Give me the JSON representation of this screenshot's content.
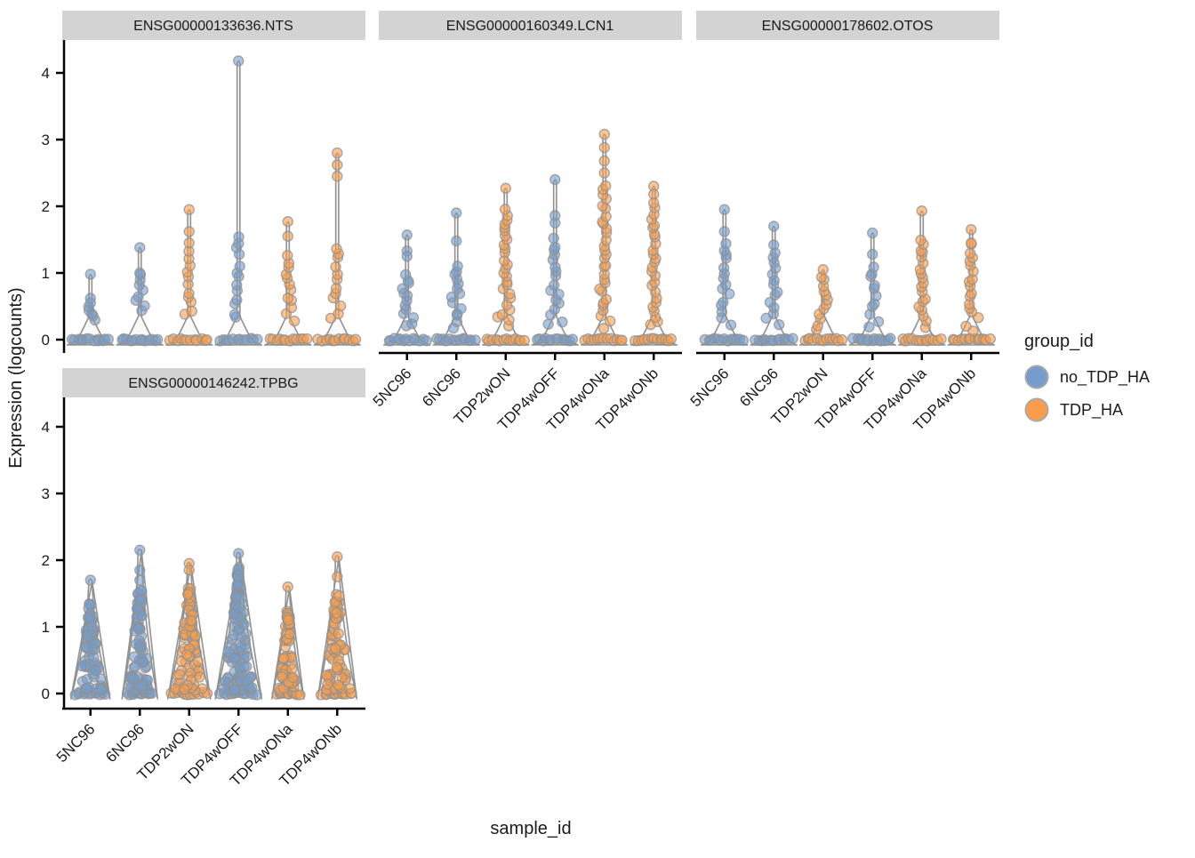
{
  "axes": {
    "x_title": "sample_id",
    "y_title": "Expression (logcounts)",
    "y_ticks": [
      "0",
      "1",
      "2",
      "3",
      "4"
    ],
    "x_categories": [
      "5NC96",
      "6NC96",
      "TDP2wON",
      "TDP4wOFF",
      "TDP4wONa",
      "TDP4wONb"
    ]
  },
  "legend": {
    "title": "group_id",
    "items": [
      {
        "label": "no_TDP_HA",
        "color": "#759CCC"
      },
      {
        "label": "TDP_HA",
        "color": "#F99C4B"
      }
    ]
  },
  "colors": {
    "strip_bg": "#D3D3D3",
    "violin_outline": "#8C8C8C",
    "violin_fill": "#F4F4F4",
    "point_stroke": "#909090",
    "axis_line": "#000000"
  },
  "chart_data": {
    "type": "violin-beeswarm",
    "xlabel": "sample_id",
    "ylabel": "Expression (logcounts)",
    "ylim": [
      0,
      4.4
    ],
    "y_tick_values": [
      0,
      1,
      2,
      3,
      4
    ],
    "x_categories": [
      "5NC96",
      "6NC96",
      "TDP2wON",
      "TDP4wOFF",
      "TDP4wONa",
      "TDP4wONb"
    ],
    "group_of_sample": {
      "5NC96": "no_TDP_HA",
      "6NC96": "no_TDP_HA",
      "TDP2wON": "TDP_HA",
      "TDP4wOFF": "no_TDP_HA",
      "TDP4wONa": "TDP_HA",
      "TDP4wONb": "TDP_HA"
    },
    "facets": [
      {
        "title": "ENSG00000133636.NTS",
        "violins": [
          {
            "sample": "5NC96",
            "group": "no_TDP_HA",
            "max": 0.98,
            "upper": [
              0.98,
              0.62,
              0.55
            ],
            "column": {
              "from": 0.3,
              "to": 0.5,
              "n": 5
            },
            "base_n": 13,
            "shape": "spike",
            "hw": 26
          },
          {
            "sample": "6NC96",
            "group": "no_TDP_HA",
            "max": 1.38,
            "upper": [
              1.38,
              1.0
            ],
            "column": {
              "from": 0.45,
              "to": 0.95,
              "n": 8
            },
            "base_n": 13,
            "shape": "spike",
            "hw": 26
          },
          {
            "sample": "TDP2wON",
            "group": "TDP_HA",
            "max": 1.95,
            "upper": [
              1.95,
              1.62,
              1.45
            ],
            "column": {
              "from": 0.35,
              "to": 1.3,
              "n": 11
            },
            "base_n": 12,
            "shape": "spike",
            "hw": 26
          },
          {
            "sample": "TDP4wOFF",
            "group": "no_TDP_HA",
            "max": 4.18,
            "upper": [
              4.18
            ],
            "column": {
              "from": 0.3,
              "to": 1.55,
              "n": 13
            },
            "base_n": 12,
            "shape": "spike",
            "hw": 26
          },
          {
            "sample": "TDP4wONa",
            "group": "TDP_HA",
            "max": 1.77,
            "upper": [
              1.77,
              1.55
            ],
            "column": {
              "from": 0.3,
              "to": 1.25,
              "n": 12
            },
            "base_n": 12,
            "shape": "spike",
            "hw": 26
          },
          {
            "sample": "TDP4wONb",
            "group": "TDP_HA",
            "max": 2.8,
            "upper": [
              2.8,
              2.62,
              2.45
            ],
            "column": {
              "from": 0.3,
              "to": 1.4,
              "n": 12
            },
            "base_n": 12,
            "shape": "spike",
            "hw": 26
          }
        ]
      },
      {
        "title": "ENSG00000160349.LCN1",
        "violins": [
          {
            "sample": "5NC96",
            "group": "no_TDP_HA",
            "max": 1.57,
            "upper": [
              1.57,
              1.33,
              1.25
            ],
            "column": {
              "from": 0.2,
              "to": 0.95,
              "n": 13
            },
            "base_n": 13,
            "shape": "spike",
            "hw": 26
          },
          {
            "sample": "6NC96",
            "group": "no_TDP_HA",
            "max": 1.9,
            "upper": [
              1.9,
              1.48
            ],
            "column": {
              "from": 0.2,
              "to": 1.1,
              "n": 14
            },
            "base_n": 13,
            "shape": "spike",
            "hw": 26
          },
          {
            "sample": "TDP2wON",
            "group": "TDP_HA",
            "max": 2.27,
            "upper": [
              2.27
            ],
            "column": {
              "from": 0.2,
              "to": 1.95,
              "n": 27
            },
            "base_n": 13,
            "shape": "spike",
            "hw": 26
          },
          {
            "sample": "TDP4wOFF",
            "group": "no_TDP_HA",
            "max": 2.4,
            "upper": [
              2.4,
              1.86,
              1.75
            ],
            "column": {
              "from": 0.2,
              "to": 1.5,
              "n": 17
            },
            "base_n": 13,
            "shape": "spike",
            "hw": 26
          },
          {
            "sample": "TDP4wONa",
            "group": "TDP_HA",
            "max": 3.08,
            "upper": [
              3.08,
              2.88,
              2.68,
              2.5
            ],
            "column": {
              "from": 0.2,
              "to": 2.3,
              "n": 30
            },
            "base_n": 13,
            "shape": "spike",
            "hw": 26
          },
          {
            "sample": "TDP4wONb",
            "group": "TDP_HA",
            "max": 2.3,
            "upper": [
              2.3,
              2.18,
              2.05
            ],
            "column": {
              "from": 0.2,
              "to": 1.95,
              "n": 25
            },
            "base_n": 13,
            "shape": "spike",
            "hw": 26
          }
        ]
      },
      {
        "title": "ENSG00000178602.OTOS",
        "violins": [
          {
            "sample": "5NC96",
            "group": "no_TDP_HA",
            "max": 1.95,
            "upper": [
              1.95,
              1.62
            ],
            "column": {
              "from": 0.25,
              "to": 1.45,
              "n": 15
            },
            "base_n": 13,
            "shape": "spike",
            "hw": 26
          },
          {
            "sample": "6NC96",
            "group": "no_TDP_HA",
            "max": 1.7,
            "upper": [
              1.7,
              1.42
            ],
            "column": {
              "from": 0.25,
              "to": 1.3,
              "n": 14
            },
            "base_n": 13,
            "shape": "spike",
            "hw": 26
          },
          {
            "sample": "TDP2wON",
            "group": "TDP_HA",
            "max": 1.05,
            "upper": [
              1.05
            ],
            "column": {
              "from": 0.15,
              "to": 0.95,
              "n": 12
            },
            "base_n": 13,
            "shape": "spike",
            "hw": 26
          },
          {
            "sample": "TDP4wOFF",
            "group": "no_TDP_HA",
            "max": 1.6,
            "upper": [
              1.6,
              1.28
            ],
            "column": {
              "from": 0.2,
              "to": 1.1,
              "n": 11
            },
            "base_n": 13,
            "shape": "spike",
            "hw": 26
          },
          {
            "sample": "TDP4wONa",
            "group": "TDP_HA",
            "max": 1.93,
            "upper": [
              1.93
            ],
            "column": {
              "from": 0.2,
              "to": 1.5,
              "n": 19
            },
            "base_n": 13,
            "shape": "spike",
            "hw": 26
          },
          {
            "sample": "TDP4wONb",
            "group": "TDP_HA",
            "max": 1.65,
            "upper": [
              1.65,
              1.45
            ],
            "column": {
              "from": 0.15,
              "to": 1.4,
              "n": 17
            },
            "base_n": 13,
            "shape": "spike",
            "hw": 26
          }
        ]
      },
      {
        "title": "ENSG00000146242.TPBG",
        "violins": [
          {
            "sample": "5NC96",
            "group": "no_TDP_HA",
            "max": 1.7,
            "upper": [
              1.7
            ],
            "column": {
              "from": 0.05,
              "to": 1.35,
              "n": 70
            },
            "base_n": 12,
            "shape": "cone",
            "hw": 22
          },
          {
            "sample": "6NC96",
            "group": "no_TDP_HA",
            "max": 2.15,
            "upper": [
              2.15,
              1.85,
              1.7
            ],
            "column": {
              "from": 0.05,
              "to": 1.55,
              "n": 80
            },
            "base_n": 12,
            "shape": "cone",
            "hw": 20
          },
          {
            "sample": "TDP2wON",
            "group": "TDP_HA",
            "max": 1.95,
            "upper": [
              1.95,
              1.85
            ],
            "column": {
              "from": 0.05,
              "to": 1.6,
              "n": 85
            },
            "base_n": 12,
            "shape": "cone",
            "hw": 24
          },
          {
            "sample": "TDP4wOFF",
            "group": "no_TDP_HA",
            "max": 2.1,
            "upper": [
              2.1
            ],
            "column": {
              "from": 0.05,
              "to": 1.9,
              "n": 110
            },
            "base_n": 12,
            "shape": "cone",
            "hw": 26
          },
          {
            "sample": "TDP4wONa",
            "group": "TDP_HA",
            "max": 1.6,
            "upper": [
              1.6
            ],
            "column": {
              "from": 0.05,
              "to": 1.25,
              "n": 60
            },
            "base_n": 12,
            "shape": "cone",
            "hw": 18
          },
          {
            "sample": "TDP4wONb",
            "group": "TDP_HA",
            "max": 2.05,
            "upper": [
              2.05,
              1.75
            ],
            "column": {
              "from": 0.05,
              "to": 1.5,
              "n": 70
            },
            "base_n": 12,
            "shape": "cone",
            "hw": 22
          }
        ]
      }
    ]
  }
}
